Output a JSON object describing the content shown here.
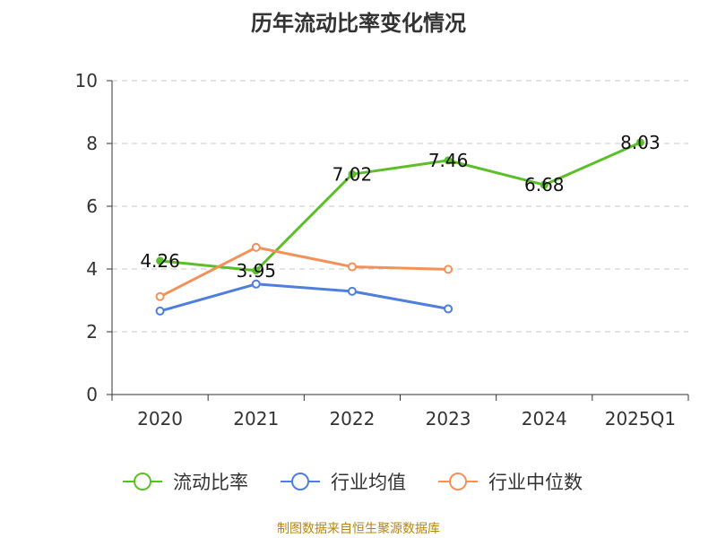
{
  "chart_data": {
    "type": "line",
    "title": "历年流动比率变化情况",
    "categories": [
      "2020",
      "2021",
      "2022",
      "2023",
      "2024",
      "2025Q1"
    ],
    "ylim": [
      0,
      10
    ],
    "yticks": [
      "0",
      "2",
      "4",
      "6",
      "8",
      "10"
    ],
    "grid": true,
    "legend_position": "bottom",
    "series": [
      {
        "name": "流动比率",
        "color": "#5cbf2a",
        "values": [
          4.26,
          3.95,
          7.02,
          7.46,
          6.68,
          8.03
        ],
        "labels": [
          "4.26",
          "3.95",
          "7.02",
          "7.46",
          "6.68",
          "8.03"
        ]
      },
      {
        "name": "行业均值",
        "color": "#4e7fdc",
        "values": [
          2.66,
          3.52,
          3.29,
          2.73,
          null,
          null
        ]
      },
      {
        "name": "行业中位数",
        "color": "#f4915a",
        "values": [
          3.12,
          4.69,
          4.07,
          3.99,
          null,
          null
        ]
      }
    ]
  },
  "source_note": "制图数据来自恒生聚源数据库"
}
